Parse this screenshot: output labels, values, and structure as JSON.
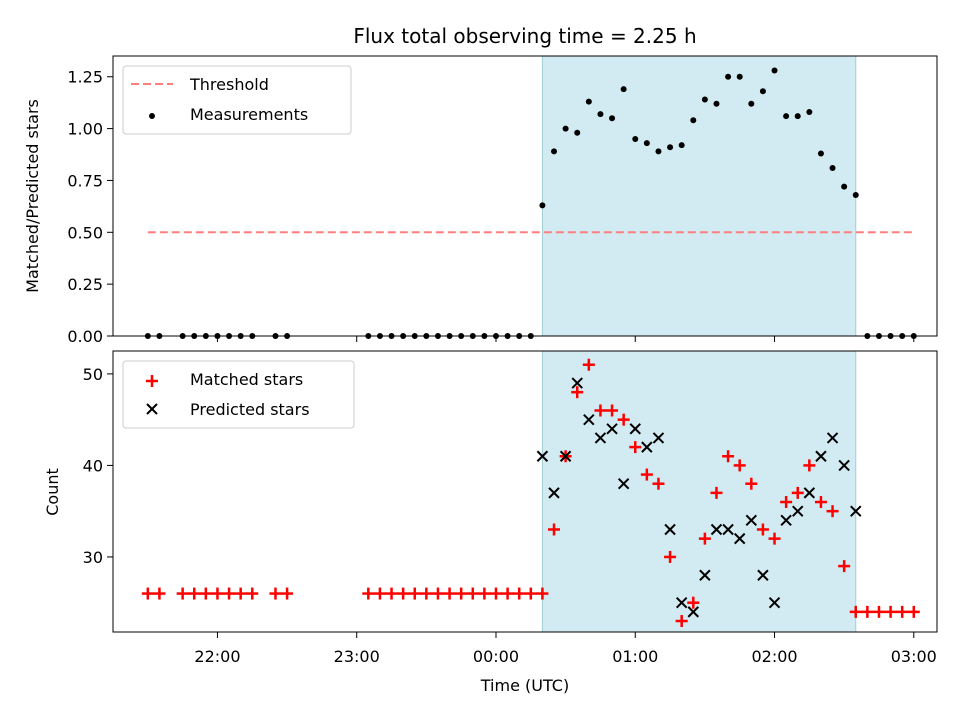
{
  "title": "Flux total observing time = 2.25 h",
  "colors": {
    "threshold": "#ff7f7f",
    "measurement": "#000000",
    "matched": "#ff0000",
    "predicted": "#000000",
    "shade": "#add8e6"
  },
  "chart_data": [
    {
      "type": "scatter",
      "panel": "top",
      "ylabel": "Matched/Predicted stars",
      "ylim": [
        0,
        1.35
      ],
      "yticks": [
        0.0,
        0.25,
        0.5,
        0.75,
        1.0,
        1.25
      ],
      "ytick_labels": [
        "0.00",
        "0.25",
        "0.50",
        "0.75",
        "1.00",
        "1.25"
      ],
      "legend": {
        "position": "upper-left",
        "entries": [
          "Threshold",
          "Measurements"
        ]
      },
      "threshold": {
        "name": "Threshold",
        "value": 0.5,
        "x_start": "21:30",
        "x_end": "03:00",
        "style": "dashed"
      },
      "shaded_span": {
        "start": "00:20",
        "end": "02:35"
      },
      "series": [
        {
          "name": "Measurements",
          "x": [
            "21:30",
            "21:35",
            "21:45",
            "21:50",
            "21:55",
            "22:00",
            "22:05",
            "22:10",
            "22:15",
            "22:25",
            "22:30",
            "23:05",
            "23:10",
            "23:15",
            "23:20",
            "23:25",
            "23:30",
            "23:35",
            "23:40",
            "23:45",
            "23:50",
            "23:55",
            "00:00",
            "00:05",
            "00:10",
            "00:15",
            "00:20",
            "00:25",
            "00:30",
            "00:35",
            "00:40",
            "00:45",
            "00:50",
            "00:55",
            "01:00",
            "01:05",
            "01:10",
            "01:15",
            "01:20",
            "01:25",
            "01:30",
            "01:35",
            "01:40",
            "01:45",
            "01:50",
            "01:55",
            "02:00",
            "02:05",
            "02:10",
            "02:15",
            "02:20",
            "02:25",
            "02:30",
            "02:35",
            "02:40",
            "02:45",
            "02:50",
            "02:55",
            "03:00"
          ],
          "values": [
            0,
            0,
            0,
            0,
            0,
            0,
            0,
            0,
            0,
            0,
            0,
            0,
            0,
            0,
            0,
            0,
            0,
            0,
            0,
            0,
            0,
            0,
            0,
            0,
            0,
            0,
            0.63,
            0.89,
            1.0,
            0.98,
            1.13,
            1.07,
            1.05,
            1.19,
            0.95,
            0.93,
            0.89,
            0.91,
            0.92,
            1.04,
            1.14,
            1.12,
            1.25,
            1.25,
            1.12,
            1.18,
            1.28,
            1.06,
            1.06,
            1.08,
            0.88,
            0.81,
            0.72,
            0.68,
            0,
            0,
            0,
            0,
            0
          ]
        }
      ]
    },
    {
      "type": "scatter",
      "panel": "bottom",
      "xlabel": "Time (UTC)",
      "ylabel": "Count",
      "ylim": [
        21.8,
        52.5
      ],
      "yticks": [
        30,
        40,
        50
      ],
      "ytick_labels": [
        "30",
        "40",
        "50"
      ],
      "xlim": [
        "21:15",
        "03:10"
      ],
      "xticks": [
        "22:00",
        "23:00",
        "00:00",
        "01:00",
        "02:00",
        "03:00"
      ],
      "legend": {
        "position": "upper-left",
        "entries": [
          "Matched stars",
          "Predicted stars"
        ]
      },
      "shaded_span": {
        "start": "00:20",
        "end": "02:35"
      },
      "series": [
        {
          "name": "Matched stars",
          "marker": "plus",
          "x": [
            "21:30",
            "21:35",
            "21:45",
            "21:50",
            "21:55",
            "22:00",
            "22:05",
            "22:10",
            "22:15",
            "22:25",
            "22:30",
            "23:05",
            "23:10",
            "23:15",
            "23:20",
            "23:25",
            "23:30",
            "23:35",
            "23:40",
            "23:45",
            "23:50",
            "23:55",
            "00:00",
            "00:05",
            "00:10",
            "00:15",
            "00:20",
            "00:25",
            "00:30",
            "00:35",
            "00:40",
            "00:45",
            "00:50",
            "00:55",
            "01:00",
            "01:05",
            "01:10",
            "01:15",
            "01:20",
            "01:25",
            "01:30",
            "01:35",
            "01:40",
            "01:45",
            "01:50",
            "01:55",
            "02:00",
            "02:05",
            "02:10",
            "02:15",
            "02:20",
            "02:25",
            "02:30",
            "02:35",
            "02:40",
            "02:45",
            "02:50",
            "02:55",
            "03:00"
          ],
          "values": [
            26,
            26,
            26,
            26,
            26,
            26,
            26,
            26,
            26,
            26,
            26,
            26,
            26,
            26,
            26,
            26,
            26,
            26,
            26,
            26,
            26,
            26,
            26,
            26,
            26,
            26,
            26,
            33,
            41,
            48,
            51,
            46,
            46,
            45,
            42,
            39,
            38,
            30,
            23,
            25,
            32,
            37,
            41,
            40,
            38,
            33,
            32,
            36,
            37,
            40,
            36,
            35,
            29,
            24,
            24,
            24,
            24,
            24,
            24
          ]
        },
        {
          "name": "Predicted stars",
          "marker": "x",
          "x": [
            "00:20",
            "00:25",
            "00:30",
            "00:35",
            "00:40",
            "00:45",
            "00:50",
            "00:55",
            "01:00",
            "01:05",
            "01:10",
            "01:15",
            "01:20",
            "01:25",
            "01:30",
            "01:35",
            "01:40",
            "01:45",
            "01:50",
            "01:55",
            "02:00",
            "02:05",
            "02:10",
            "02:15",
            "02:20",
            "02:25",
            "02:30",
            "02:35"
          ],
          "values": [
            41,
            37,
            41,
            49,
            45,
            43,
            44,
            38,
            44,
            42,
            43,
            33,
            25,
            24,
            28,
            33,
            33,
            32,
            34,
            28,
            25,
            34,
            35,
            37,
            41,
            43,
            40,
            35
          ]
        }
      ]
    }
  ]
}
